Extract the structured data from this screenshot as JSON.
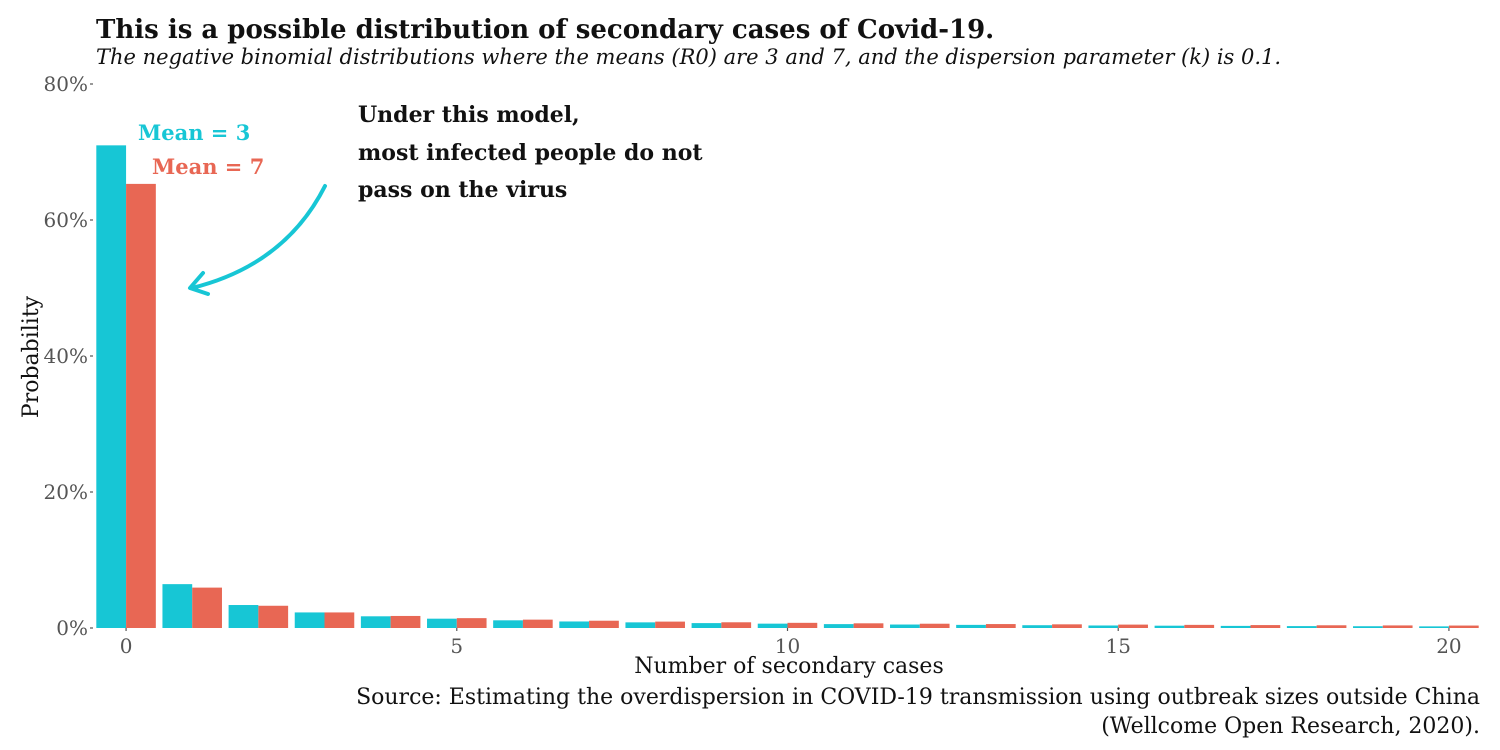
{
  "chart_data": {
    "type": "bar",
    "title": "This is a possible distribution of secondary cases of Covid-19.",
    "subtitle": "The negative binomial distributions where the means (R0) are 3 and 7, and the dispersion parameter (k) is 0.1.",
    "xlabel": "Number of secondary cases",
    "ylabel": "Probability",
    "x": [
      0,
      1,
      2,
      3,
      4,
      5,
      6,
      7,
      8,
      9,
      10,
      11,
      12,
      13,
      14,
      15,
      16,
      17,
      18,
      19,
      20
    ],
    "xticks": [
      0,
      5,
      10,
      15,
      20
    ],
    "xtick_labels": [
      "0",
      "5",
      "10",
      "15",
      "20"
    ],
    "xlim": [
      -0.5,
      20.5
    ],
    "ylim": [
      0,
      0.8
    ],
    "yticks": [
      0,
      0.2,
      0.4,
      0.6,
      0.8
    ],
    "ytick_labels": [
      "0%",
      "20%",
      "40%",
      "60%",
      "80%"
    ],
    "grid": false,
    "series": [
      {
        "name": "Mean = 3",
        "color": "#17C6D5",
        "values": [
          0.7098,
          0.0645,
          0.0338,
          0.0229,
          0.0172,
          0.0137,
          0.0113,
          0.0096,
          0.0083,
          0.0072,
          0.0064,
          0.0057,
          0.0051,
          0.0046,
          0.0041,
          0.0037,
          0.0034,
          0.0031,
          0.0028,
          0.0026,
          0.0024
        ]
      },
      {
        "name": "Mean = 7",
        "color": "#E86754",
        "values": [
          0.6531,
          0.0594,
          0.0327,
          0.0229,
          0.0177,
          0.0145,
          0.0123,
          0.0107,
          0.0094,
          0.0084,
          0.0076,
          0.0069,
          0.0063,
          0.0058,
          0.0054,
          0.005,
          0.0046,
          0.0043,
          0.004,
          0.0038,
          0.0036
        ]
      }
    ],
    "legend": {
      "placement": "top-left, inline next to first bars",
      "entries": [
        "Mean = 3",
        "Mean = 7"
      ]
    },
    "annotation": {
      "lines": [
        "Under this model,",
        "most infected people do not",
        "pass on the virus"
      ],
      "arrow_color": "#17C6D5"
    },
    "source": {
      "line1": "Source: Estimating the overdispersion in COVID-19 transmission using outbreak sizes outside China",
      "line2": "(Wellcome Open Research, 2020)."
    }
  }
}
